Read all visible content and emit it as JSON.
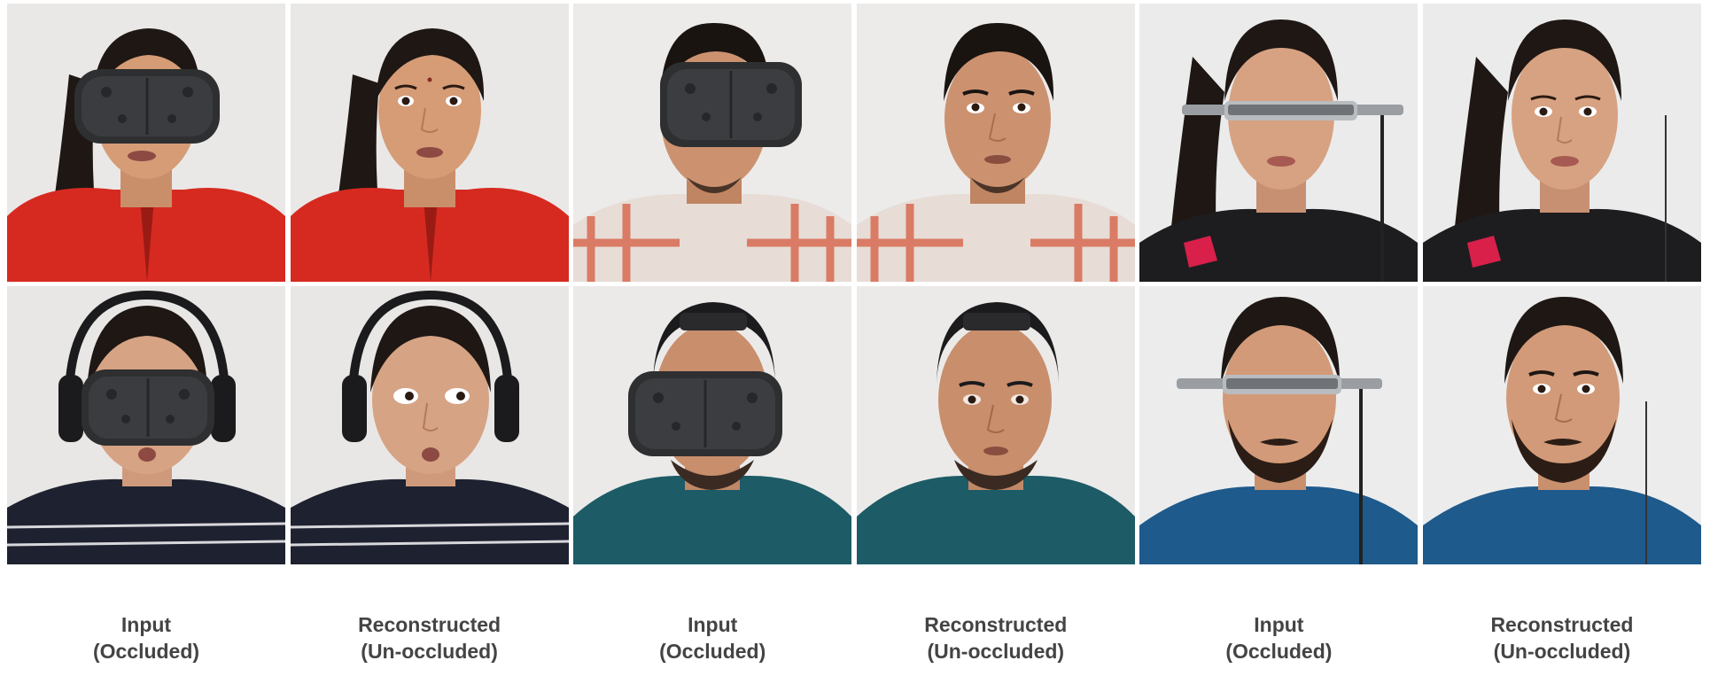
{
  "figure": {
    "captions": [
      {
        "line1": "Input",
        "line2": "(Occluded)"
      },
      {
        "line1": "Reconstructed",
        "line2": "(Un-occluded)"
      },
      {
        "line1": "Input",
        "line2": "(Occluded)"
      },
      {
        "line1": "Reconstructed",
        "line2": "(Un-occluded)"
      },
      {
        "line1": "Input",
        "line2": "(Occluded)"
      },
      {
        "line1": "Reconstructed",
        "line2": "(Un-occluded)"
      }
    ],
    "photos": [
      {
        "name": "photo-woman-red-jacket-vr-headset-input",
        "headset": "vr",
        "subject": "woman-red-jacket"
      },
      {
        "name": "photo-woman-red-jacket-reconstructed",
        "headset": "none",
        "subject": "woman-red-jacket"
      },
      {
        "name": "photo-man-checked-shirt-vr-headset-input",
        "headset": "vr",
        "subject": "man-checked-shirt"
      },
      {
        "name": "photo-man-checked-shirt-reconstructed",
        "headset": "none",
        "subject": "man-checked-shirt"
      },
      {
        "name": "photo-woman-black-top-ar-glasses-input",
        "headset": "ar",
        "subject": "woman-black-top"
      },
      {
        "name": "photo-woman-black-top-reconstructed",
        "headset": "none",
        "subject": "woman-black-top"
      },
      {
        "name": "photo-woman-headphones-vr-headset-input",
        "headset": "vr",
        "subject": "woman-headphones"
      },
      {
        "name": "photo-woman-headphones-reconstructed",
        "headset": "none",
        "subject": "woman-headphones"
      },
      {
        "name": "photo-man-backwards-cap-vr-headset-input",
        "headset": "vr",
        "subject": "man-cap"
      },
      {
        "name": "photo-man-backwards-cap-reconstructed",
        "headset": "none",
        "subject": "man-cap"
      },
      {
        "name": "photo-man-beard-ar-glasses-input",
        "headset": "ar",
        "subject": "man-beard"
      },
      {
        "name": "photo-man-beard-reconstructed",
        "headset": "none",
        "subject": "man-beard"
      }
    ],
    "colors": {
      "caption_text": "#444444",
      "background": "#ffffff",
      "skin": "#d8a07a",
      "hair": "#1e1714",
      "headset": "#2e2f31"
    }
  }
}
